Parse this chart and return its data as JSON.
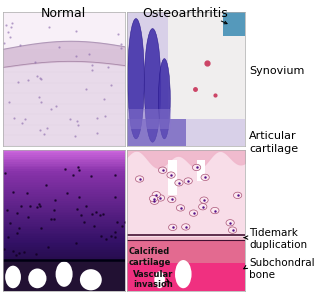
{
  "title_normal": "Normal",
  "title_oa": "Osteoarthritis",
  "label_synovium": "Synovium",
  "label_articular": "Articular\ncartilage",
  "label_calcified": "Calcified\ncartilage",
  "label_vascular": "Vascular\ninvasion",
  "label_tidemark": "Tidemark\nduplication",
  "label_subchondral": "Subchondral\nbone",
  "text_color": "#000000",
  "fig_bg": "#ffffff",
  "tl_bg": "#e8daea",
  "tl_top": "#f5f0f5",
  "tl_arc_color": "#c8b8cc",
  "tl_cell_color": "#8866aa",
  "tr_bg": "#ccc8e0",
  "tr_white": "#f0eeee",
  "tr_dark_fold": "#5544aa",
  "tr_blue_streak": "#4488bb",
  "tr_pink_dot": "#cc4466",
  "bl_top_color": "#cc88dd",
  "bl_mid_color": "#8833bb",
  "bl_bot_color": "#220044",
  "bl_line_color": "#000033",
  "bl_bone_color": "#5522aa",
  "bl_bone_bg": "#330044",
  "bl_cell": "#110022",
  "br_bg": "#f0c0d0",
  "br_top": "#f5dde8",
  "br_pink_zone": "#ee99bb",
  "br_calc": "#dd3366",
  "br_bone": "#ee2277",
  "br_cell_ec": "#aa5577",
  "br_cell_dot": "#551188",
  "br_tidemark": "#441133",
  "panel_border": "#aaaaaa"
}
